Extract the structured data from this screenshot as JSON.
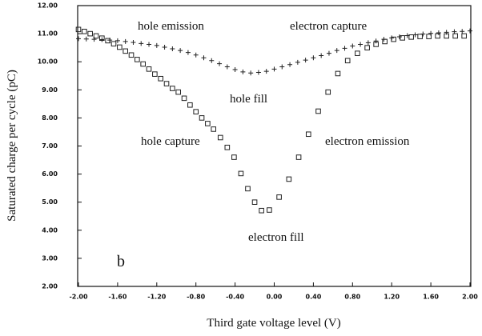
{
  "chart_data": {
    "type": "scatter",
    "x_label": "Third gate voltage level (V)",
    "y_label": "Saturated charge per cycle (pC)",
    "annotations": [
      "hole emission",
      "electron capture",
      "hole fill",
      "hole capture",
      "electron emission",
      "electron fill",
      "b"
    ],
    "xlim": [
      -2.0,
      2.0
    ],
    "ylim": [
      2.0,
      12.0
    ],
    "xticks": [
      {
        "value": -2.0,
        "label": "-2.00"
      },
      {
        "value": -1.6,
        "label": "-1.60"
      },
      {
        "value": -1.2,
        "label": "-1.20"
      },
      {
        "value": -0.8,
        "label": "-0.80"
      },
      {
        "value": -0.4,
        "label": "-0.40"
      },
      {
        "value": 0,
        "label": "0.00"
      },
      {
        "value": 0.4,
        "label": "0.40"
      },
      {
        "value": 0.8,
        "label": "0.80"
      },
      {
        "value": 1.2,
        "label": "1.20"
      },
      {
        "value": 1.6,
        "label": "1.60"
      },
      {
        "value": 2.0,
        "label": "2.00"
      }
    ],
    "yticks": [
      {
        "value": 2,
        "label": "2.00"
      },
      {
        "value": 3,
        "label": "3.00"
      },
      {
        "value": 4,
        "label": "4.00"
      },
      {
        "value": 5,
        "label": "5.00"
      },
      {
        "value": 6,
        "label": "6.00"
      },
      {
        "value": 7,
        "label": "7.00"
      },
      {
        "value": 8,
        "label": "8.00"
      },
      {
        "value": 9,
        "label": "9.00"
      },
      {
        "value": 10,
        "label": "10.00"
      },
      {
        "value": 11,
        "label": "11.00"
      },
      {
        "value": 12,
        "label": "12.00"
      }
    ],
    "grid": false,
    "series": [
      {
        "marker": "square",
        "color": "#222222",
        "x": [
          -2.0,
          -1.94,
          -1.88,
          -1.82,
          -1.76,
          -1.7,
          -1.64,
          -1.58,
          -1.52,
          -1.46,
          -1.4,
          -1.34,
          -1.28,
          -1.22,
          -1.16,
          -1.1,
          -1.04,
          -0.98,
          -0.92,
          -0.86,
          -0.8,
          -0.74,
          -0.68,
          -0.62,
          -0.55,
          -0.48,
          -0.41,
          -0.34,
          -0.27,
          -0.2,
          -0.13,
          -0.05,
          0.05,
          0.15,
          0.25,
          0.35,
          0.45,
          0.55,
          0.65,
          0.75,
          0.85,
          0.95,
          1.04,
          1.13,
          1.22,
          1.31,
          1.4,
          1.49,
          1.58,
          1.67,
          1.76,
          1.85,
          1.94
        ],
        "values": [
          11.15,
          11.08,
          11.0,
          10.92,
          10.84,
          10.75,
          10.64,
          10.52,
          10.38,
          10.24,
          10.08,
          9.92,
          9.74,
          9.56,
          9.4,
          9.22,
          9.05,
          8.92,
          8.7,
          8.46,
          8.22,
          8.0,
          7.8,
          7.6,
          7.3,
          6.95,
          6.6,
          6.02,
          5.48,
          5.0,
          4.7,
          4.72,
          5.18,
          5.82,
          6.6,
          7.42,
          8.24,
          8.92,
          9.58,
          10.04,
          10.3,
          10.5,
          10.62,
          10.72,
          10.8,
          10.85,
          10.88,
          10.9,
          10.9,
          10.92,
          10.92,
          10.92,
          10.92
        ]
      },
      {
        "marker": "plus",
        "color": "#222222",
        "x": [
          -2.0,
          -1.92,
          -1.84,
          -1.76,
          -1.68,
          -1.6,
          -1.52,
          -1.44,
          -1.36,
          -1.28,
          -1.2,
          -1.12,
          -1.04,
          -0.96,
          -0.88,
          -0.8,
          -0.72,
          -0.64,
          -0.56,
          -0.48,
          -0.4,
          -0.32,
          -0.24,
          -0.16,
          -0.08,
          0.0,
          0.08,
          0.16,
          0.24,
          0.32,
          0.4,
          0.48,
          0.56,
          0.64,
          0.72,
          0.8,
          0.88,
          0.96,
          1.04,
          1.12,
          1.2,
          1.28,
          1.36,
          1.44,
          1.52,
          1.6,
          1.68,
          1.76,
          1.84,
          1.92,
          2.0
        ],
        "values": [
          10.82,
          10.81,
          10.8,
          10.79,
          10.77,
          10.75,
          10.72,
          10.69,
          10.65,
          10.62,
          10.58,
          10.52,
          10.46,
          10.4,
          10.33,
          10.24,
          10.14,
          10.04,
          9.93,
          9.82,
          9.72,
          9.64,
          9.6,
          9.62,
          9.66,
          9.74,
          9.82,
          9.9,
          9.98,
          10.06,
          10.14,
          10.22,
          10.3,
          10.4,
          10.48,
          10.56,
          10.62,
          10.68,
          10.74,
          10.8,
          10.85,
          10.89,
          10.93,
          10.96,
          10.99,
          11.01,
          11.03,
          11.05,
          11.07,
          11.08,
          11.1
        ]
      }
    ]
  }
}
